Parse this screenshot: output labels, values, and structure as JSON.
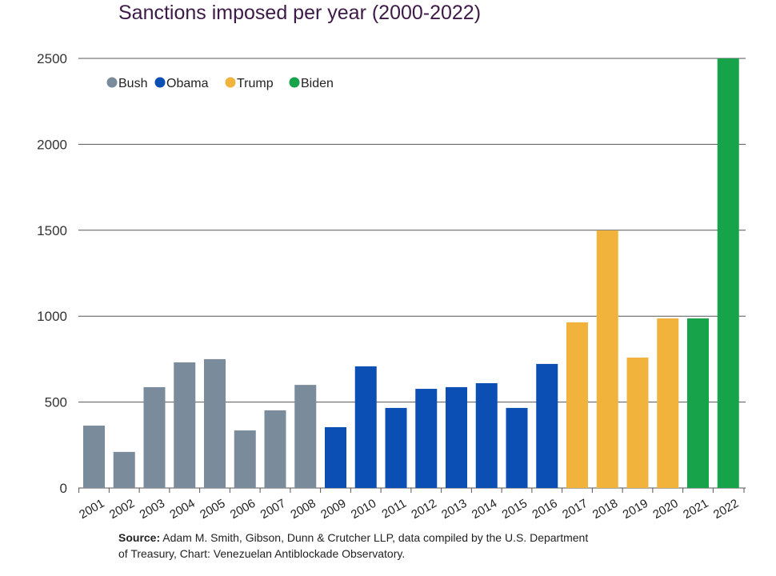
{
  "chart_data": {
    "type": "bar",
    "title": "Sanctions imposed per year (2000-2022)",
    "xlabel": "",
    "ylabel": "",
    "ylim": [
      0,
      2500
    ],
    "yticks": [
      "0",
      "500",
      "1000",
      "1500",
      "2000",
      "2500"
    ],
    "grid": true,
    "legend_position": "top-left",
    "legend": [
      {
        "name": "Bush",
        "color": "#7a8c9c"
      },
      {
        "name": "Obama",
        "color": "#0b4fb5"
      },
      {
        "name": "Trump",
        "color": "#f2b33d"
      },
      {
        "name": "Biden",
        "color": "#17a34a"
      }
    ],
    "categories": [
      "2001",
      "2002",
      "2003",
      "2004",
      "2005",
      "2006",
      "2007",
      "2008",
      "2009",
      "2010",
      "2011",
      "2012",
      "2013",
      "2014",
      "2015",
      "2016",
      "2017",
      "2018",
      "2019",
      "2020",
      "2021",
      "2022"
    ],
    "values": [
      363,
      210,
      587,
      731,
      750,
      335,
      452,
      600,
      354,
      708,
      466,
      577,
      587,
      610,
      466,
      722,
      964,
      1499,
      759,
      987,
      987,
      2500
    ],
    "groups": [
      "Bush",
      "Bush",
      "Bush",
      "Bush",
      "Bush",
      "Bush",
      "Bush",
      "Bush",
      "Obama",
      "Obama",
      "Obama",
      "Obama",
      "Obama",
      "Obama",
      "Obama",
      "Obama",
      "Trump",
      "Trump",
      "Trump",
      "Trump",
      "Biden",
      "Biden"
    ]
  },
  "source": {
    "label": "Source:",
    "text": " Adam M. Smith, Gibson, Dunn & Crutcher LLP, data compiled by the U.S. Department of Treasury, Chart: Venezuelan Antiblockade Observatory."
  }
}
